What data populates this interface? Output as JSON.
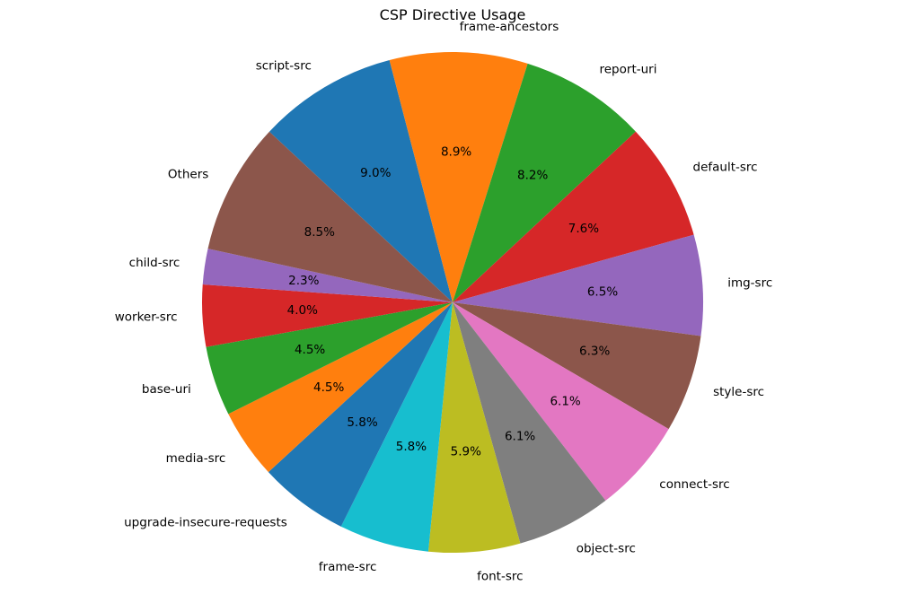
{
  "chart_data": {
    "type": "pie",
    "title": "CSP Directive Usage",
    "start_angle_deg": 137,
    "direction": "clockwise",
    "slices": [
      {
        "label": "script-src",
        "percent": 9.0,
        "color": "#1f77b4"
      },
      {
        "label": "frame-ancestors",
        "percent": 8.9,
        "color": "#ff7f0e"
      },
      {
        "label": "report-uri",
        "percent": 8.2,
        "color": "#2ca02c"
      },
      {
        "label": "default-src",
        "percent": 7.6,
        "color": "#d62728"
      },
      {
        "label": "img-src",
        "percent": 6.5,
        "color": "#9467bd"
      },
      {
        "label": "style-src",
        "percent": 6.3,
        "color": "#8c564b"
      },
      {
        "label": "connect-src",
        "percent": 6.1,
        "color": "#e377c2"
      },
      {
        "label": "object-src",
        "percent": 6.1,
        "color": "#7f7f7f"
      },
      {
        "label": "font-src",
        "percent": 5.9,
        "color": "#bcbd22"
      },
      {
        "label": "frame-src",
        "percent": 5.8,
        "color": "#17becf"
      },
      {
        "label": "upgrade-insecure-requests",
        "percent": 5.8,
        "color": "#1f77b4"
      },
      {
        "label": "media-src",
        "percent": 4.5,
        "color": "#ff7f0e"
      },
      {
        "label": "base-uri",
        "percent": 4.5,
        "color": "#2ca02c"
      },
      {
        "label": "worker-src",
        "percent": 4.0,
        "color": "#d62728"
      },
      {
        "label": "child-src",
        "percent": 2.3,
        "color": "#9467bd"
      },
      {
        "label": "Others",
        "percent": 8.5,
        "color": "#8c564b"
      }
    ]
  }
}
